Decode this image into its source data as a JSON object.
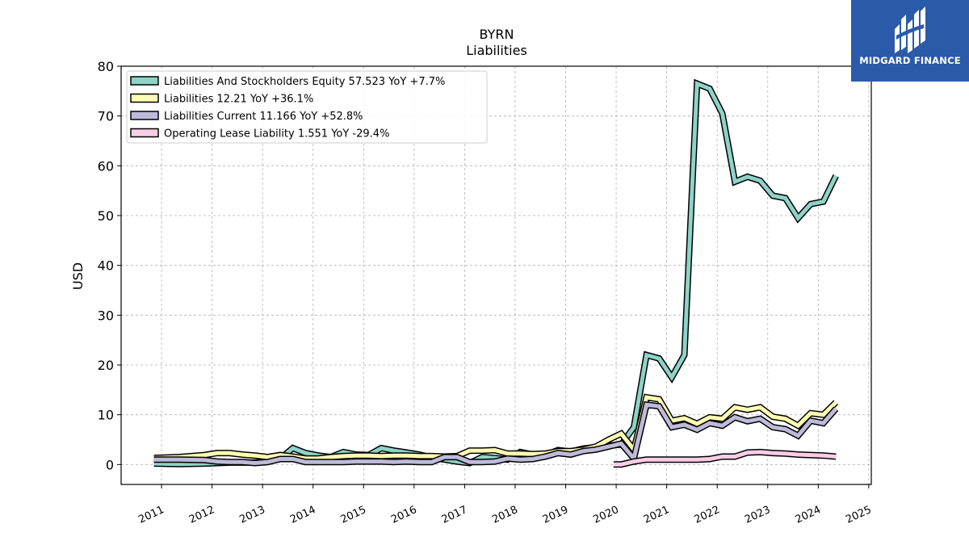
{
  "brand": {
    "name": "MIDGARD FINANCE"
  },
  "chart_data": {
    "type": "line",
    "title": "BYRN",
    "subtitle": "Liabilities",
    "ylabel": "USD",
    "xlabel": "",
    "ylim": [
      -4,
      80
    ],
    "xlim": [
      2010.2,
      2025.05
    ],
    "yticks": [
      0,
      10,
      20,
      30,
      40,
      50,
      60,
      70,
      80
    ],
    "xticks": [
      "2011",
      "2012",
      "2013",
      "2014",
      "2015",
      "2016",
      "2017",
      "2018",
      "2019",
      "2020",
      "2021",
      "2022",
      "2023",
      "2024",
      "2025"
    ],
    "grid": true,
    "legend_position": "top-left",
    "series": [
      {
        "name": "Liabilities And Stockholders Equity",
        "legend_label": "Liabilities And Stockholders Equity  57.523 YoY +7.7%",
        "color": "#8dd3c7",
        "x": [
          2010.85,
          2011.35,
          2011.85,
          2012.1,
          2012.35,
          2012.6,
          2012.85,
          2013.1,
          2013.35,
          2013.6,
          2013.85,
          2014.1,
          2014.35,
          2014.6,
          2014.85,
          2015.1,
          2015.35,
          2015.6,
          2015.85,
          2016.1,
          2016.35,
          2016.6,
          2016.85,
          2017.1,
          2017.35,
          2017.6,
          2017.85,
          2018.1,
          2018.35,
          2018.6,
          2018.85,
          2019.1,
          2019.35,
          2019.6,
          2019.85,
          2020.1,
          2020.35,
          2020.6,
          2020.85,
          2021.1,
          2021.35,
          2021.6,
          2021.85,
          2022.1,
          2022.35,
          2022.6,
          2022.85,
          2023.1,
          2023.35,
          2023.6,
          2023.85,
          2024.1,
          2024.35
        ],
        "y": [
          0.2,
          0.1,
          0.2,
          0.3,
          0.4,
          0.4,
          0.4,
          0.6,
          1.2,
          3.3,
          2.3,
          1.8,
          1.5,
          2.5,
          2.0,
          1.9,
          3.3,
          2.8,
          2.4,
          2.0,
          1.4,
          1.0,
          0.6,
          0.3,
          1.5,
          1.3,
          1.0,
          2.5,
          2.0,
          1.9,
          2.9,
          2.6,
          3.2,
          3.5,
          3.8,
          4.0,
          7.5,
          22.0,
          21.3,
          17.5,
          22.0,
          76.5,
          75.5,
          70.5,
          56.8,
          57.8,
          57.0,
          54.0,
          53.5,
          49.5,
          52.3,
          52.8,
          58.0
        ]
      },
      {
        "name": "Liabilities",
        "legend_label": "Liabilities  12.21 YoY +36.1%",
        "color": "#ffffb3",
        "x": [
          2010.85,
          2011.35,
          2011.85,
          2012.1,
          2012.35,
          2012.6,
          2012.85,
          2013.1,
          2013.35,
          2013.6,
          2013.85,
          2014.1,
          2014.35,
          2014.6,
          2014.85,
          2015.1,
          2015.35,
          2015.6,
          2015.85,
          2016.1,
          2016.35,
          2016.6,
          2016.85,
          2017.1,
          2017.35,
          2017.6,
          2017.85,
          2018.1,
          2018.35,
          2018.6,
          2018.85,
          2019.1,
          2019.35,
          2019.6,
          2019.85,
          2020.1,
          2020.35,
          2020.6,
          2020.85,
          2021.1,
          2021.35,
          2021.6,
          2021.85,
          2022.1,
          2022.35,
          2022.6,
          2022.85,
          2023.1,
          2023.35,
          2023.6,
          2023.85,
          2024.1,
          2024.35
        ],
        "y": [
          1.3,
          1.5,
          1.9,
          2.3,
          2.3,
          2.0,
          1.8,
          1.5,
          1.9,
          1.6,
          1.2,
          1.2,
          1.5,
          1.7,
          1.8,
          1.8,
          1.7,
          1.8,
          1.8,
          1.7,
          1.7,
          1.6,
          1.7,
          2.8,
          2.8,
          2.9,
          2.2,
          2.2,
          2.1,
          2.2,
          2.7,
          2.7,
          3.0,
          3.6,
          5.0,
          6.2,
          3.0,
          13.5,
          13.1,
          8.8,
          9.3,
          8.2,
          9.5,
          9.2,
          11.5,
          11.0,
          11.5,
          9.6,
          9.2,
          7.8,
          10.3,
          10.0,
          12.5
        ]
      },
      {
        "name": "Liabilities Current",
        "legend_label": "Liabilities Current  11.166 YoY +52.8%",
        "color": "#bebada",
        "x": [
          2010.85,
          2011.35,
          2011.85,
          2012.1,
          2012.35,
          2012.6,
          2012.85,
          2013.1,
          2013.35,
          2013.6,
          2013.85,
          2014.1,
          2014.35,
          2014.6,
          2014.85,
          2015.1,
          2015.35,
          2015.6,
          2015.85,
          2016.1,
          2016.35,
          2016.6,
          2016.85,
          2017.1,
          2017.35,
          2017.6,
          2017.85,
          2018.1,
          2018.35,
          2018.6,
          2018.85,
          2019.1,
          2019.35,
          2019.6,
          2019.85,
          2020.1,
          2020.35,
          2020.6,
          2020.85,
          2021.1,
          2021.35,
          2021.6,
          2021.85,
          2022.1,
          2022.35,
          2022.6,
          2022.85,
          2023.1,
          2023.35,
          2023.6,
          2023.85,
          2024.1,
          2024.35
        ],
        "y": [
          1.0,
          1.0,
          0.9,
          0.6,
          0.5,
          0.5,
          0.3,
          0.5,
          1.1,
          1.1,
          0.5,
          0.5,
          0.5,
          0.5,
          0.6,
          0.6,
          0.6,
          0.5,
          0.6,
          0.5,
          0.5,
          1.5,
          1.5,
          0.5,
          0.5,
          0.6,
          1.2,
          1.0,
          1.1,
          1.6,
          2.3,
          2.0,
          2.7,
          3.0,
          3.6,
          4.2,
          1.2,
          12.0,
          11.7,
          7.5,
          8.0,
          7.0,
          8.3,
          7.8,
          9.5,
          8.7,
          9.2,
          7.5,
          7.1,
          5.8,
          8.8,
          8.3,
          11.2
        ]
      },
      {
        "name": "Operating Lease Liability",
        "legend_label": "Operating Lease Liability  1.551 YoY -29.4%",
        "color": "#fccde5",
        "x": [
          2019.95,
          2020.1,
          2020.35,
          2020.6,
          2020.85,
          2021.1,
          2021.35,
          2021.6,
          2021.85,
          2022.1,
          2022.35,
          2022.6,
          2022.85,
          2023.1,
          2023.35,
          2023.6,
          2023.85,
          2024.1,
          2024.35
        ],
        "y": [
          0.0,
          0.0,
          0.6,
          1.0,
          1.0,
          1.0,
          1.0,
          1.0,
          1.1,
          1.6,
          1.6,
          2.4,
          2.5,
          2.3,
          2.2,
          2.0,
          1.9,
          1.8,
          1.6
        ]
      }
    ]
  }
}
